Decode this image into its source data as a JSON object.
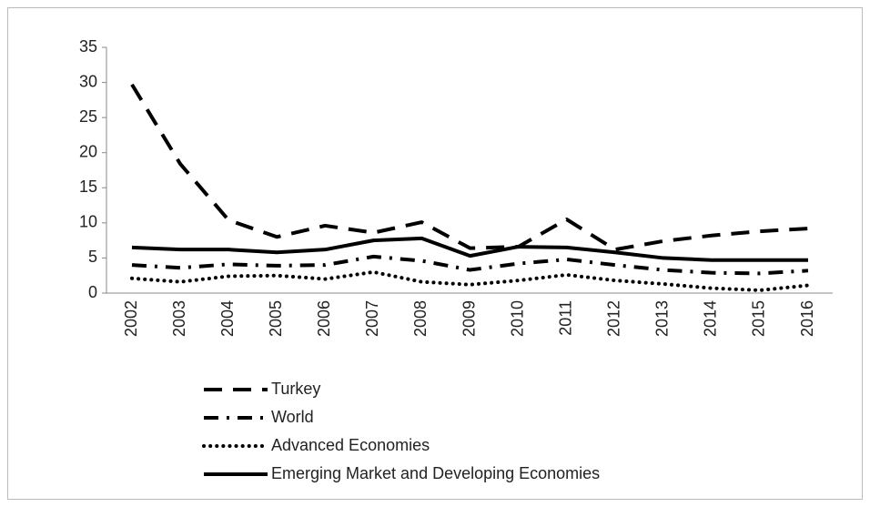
{
  "chart_data": {
    "type": "line",
    "categories": [
      "2002",
      "2003",
      "2004",
      "2005",
      "2006",
      "2007",
      "2008",
      "2009",
      "2010",
      "2011",
      "2012",
      "2013",
      "2014",
      "2015",
      "2016"
    ],
    "series": [
      {
        "name": "Turkey",
        "color": "#000000",
        "style": "dashed",
        "values": [
          29.7,
          18.4,
          10.4,
          8.0,
          9.6,
          8.6,
          10.1,
          6.4,
          6.6,
          10.5,
          6.2,
          7.4,
          8.2,
          8.8,
          9.2
        ]
      },
      {
        "name": "World",
        "color": "#000000",
        "style": "dashdot",
        "values": [
          4.0,
          3.6,
          4.1,
          3.9,
          4.0,
          5.2,
          4.6,
          3.3,
          4.2,
          4.8,
          4.0,
          3.3,
          2.9,
          2.8,
          3.2
        ]
      },
      {
        "name": "Advanced Economies",
        "color": "#000000",
        "style": "dotted",
        "values": [
          2.1,
          1.6,
          2.4,
          2.5,
          2.0,
          3.0,
          1.6,
          1.2,
          1.8,
          2.6,
          1.8,
          1.3,
          0.7,
          0.4,
          1.1
        ]
      },
      {
        "name": "Emerging Market and Developing Economies",
        "color": "#000000",
        "style": "solid",
        "values": [
          6.5,
          6.2,
          6.2,
          5.8,
          6.2,
          7.5,
          7.8,
          5.3,
          6.6,
          6.5,
          5.8,
          5.0,
          4.7,
          4.7,
          4.7
        ]
      }
    ],
    "ylim": [
      0,
      35
    ],
    "yticks": [
      0,
      5,
      10,
      15,
      20,
      25,
      30,
      35
    ],
    "grid": false,
    "legend": "bottom"
  }
}
